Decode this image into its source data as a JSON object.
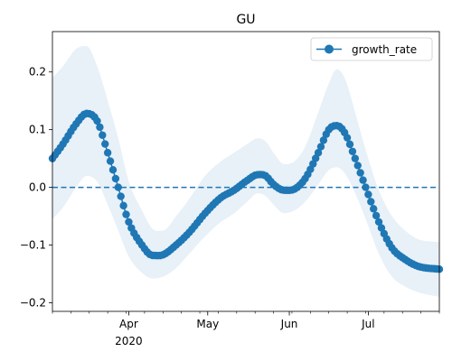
{
  "chart_data": {
    "type": "line",
    "title": "GU",
    "xlabel": "",
    "ylabel": "",
    "x_range": [
      "2020-03-03",
      "2020-07-28"
    ],
    "ylim": [
      -0.215,
      0.27
    ],
    "y_ticks": [
      -0.2,
      -0.1,
      0.0,
      0.1,
      0.2
    ],
    "y_tick_labels": [
      "−0.2",
      "−0.1",
      "0.0",
      "0.1",
      "0.2"
    ],
    "x_ticks": [
      {
        "date": "2020-04-01",
        "label": "Apr",
        "sublabel": "2020"
      },
      {
        "date": "2020-05-01",
        "label": "May",
        "sublabel": ""
      },
      {
        "date": "2020-06-01",
        "label": "Jun",
        "sublabel": ""
      },
      {
        "date": "2020-07-01",
        "label": "Jul",
        "sublabel": ""
      }
    ],
    "legend": {
      "placement": "top-right",
      "entries": [
        "growth_rate"
      ]
    },
    "reference_line": {
      "y": 0.0,
      "style": "dashed",
      "color": "#1f77b4"
    },
    "series": [
      {
        "name": "growth_rate",
        "color": "#1f77b4",
        "marker": "circle",
        "band_color": "#e8f0f8",
        "knots": [
          {
            "x": "2020-03-03",
            "y": 0.05,
            "lower": -0.055,
            "upper": 0.19
          },
          {
            "x": "2020-03-07",
            "y": 0.075,
            "lower": -0.035,
            "upper": 0.21
          },
          {
            "x": "2020-03-12",
            "y": 0.11,
            "lower": 0.0,
            "upper": 0.24
          },
          {
            "x": "2020-03-16",
            "y": 0.128,
            "lower": 0.02,
            "upper": 0.245
          },
          {
            "x": "2020-03-20",
            "y": 0.115,
            "lower": 0.01,
            "upper": 0.21
          },
          {
            "x": "2020-03-24",
            "y": 0.06,
            "lower": -0.03,
            "upper": 0.15
          },
          {
            "x": "2020-03-28",
            "y": 0.0,
            "lower": -0.075,
            "upper": 0.085
          },
          {
            "x": "2020-04-01",
            "y": -0.06,
            "lower": -0.12,
            "upper": 0.01
          },
          {
            "x": "2020-04-06",
            "y": -0.1,
            "lower": -0.148,
            "upper": -0.04
          },
          {
            "x": "2020-04-10",
            "y": -0.118,
            "lower": -0.158,
            "upper": -0.072
          },
          {
            "x": "2020-04-14",
            "y": -0.117,
            "lower": -0.155,
            "upper": -0.075
          },
          {
            "x": "2020-04-19",
            "y": -0.1,
            "lower": -0.14,
            "upper": -0.05
          },
          {
            "x": "2020-04-24",
            "y": -0.078,
            "lower": -0.115,
            "upper": -0.02
          },
          {
            "x": "2020-04-30",
            "y": -0.045,
            "lower": -0.085,
            "upper": 0.02
          },
          {
            "x": "2020-05-06",
            "y": -0.018,
            "lower": -0.06,
            "upper": 0.045
          },
          {
            "x": "2020-05-11",
            "y": -0.005,
            "lower": -0.045,
            "upper": 0.06
          },
          {
            "x": "2020-05-16",
            "y": 0.012,
            "lower": -0.025,
            "upper": 0.075
          },
          {
            "x": "2020-05-20",
            "y": 0.022,
            "lower": -0.01,
            "upper": 0.085
          },
          {
            "x": "2020-05-23",
            "y": 0.02,
            "lower": -0.015,
            "upper": 0.08
          },
          {
            "x": "2020-05-26",
            "y": 0.005,
            "lower": -0.03,
            "upper": 0.06
          },
          {
            "x": "2020-05-30",
            "y": -0.005,
            "lower": -0.045,
            "upper": 0.04
          },
          {
            "x": "2020-06-03",
            "y": -0.003,
            "lower": -0.04,
            "upper": 0.045
          },
          {
            "x": "2020-06-07",
            "y": 0.015,
            "lower": -0.025,
            "upper": 0.07
          },
          {
            "x": "2020-06-12",
            "y": 0.06,
            "lower": 0.005,
            "upper": 0.13
          },
          {
            "x": "2020-06-16",
            "y": 0.1,
            "lower": 0.03,
            "upper": 0.18
          },
          {
            "x": "2020-06-19",
            "y": 0.107,
            "lower": 0.035,
            "upper": 0.205
          },
          {
            "x": "2020-06-22",
            "y": 0.095,
            "lower": 0.025,
            "upper": 0.19
          },
          {
            "x": "2020-06-26",
            "y": 0.05,
            "lower": -0.01,
            "upper": 0.13
          },
          {
            "x": "2020-06-30",
            "y": 0.0,
            "lower": -0.055,
            "upper": 0.065
          },
          {
            "x": "2020-07-05",
            "y": -0.06,
            "lower": -0.115,
            "upper": -0.005
          },
          {
            "x": "2020-07-10",
            "y": -0.105,
            "lower": -0.155,
            "upper": -0.05
          },
          {
            "x": "2020-07-15",
            "y": -0.125,
            "lower": -0.172,
            "upper": -0.075
          },
          {
            "x": "2020-07-20",
            "y": -0.137,
            "lower": -0.182,
            "upper": -0.09
          },
          {
            "x": "2020-07-28",
            "y": -0.142,
            "lower": -0.19,
            "upper": -0.095
          }
        ]
      }
    ]
  }
}
